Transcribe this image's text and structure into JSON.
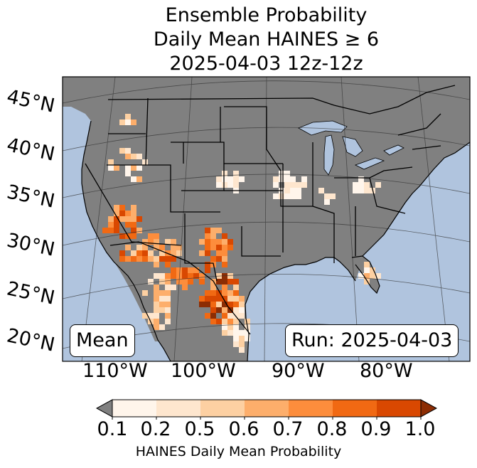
{
  "title": {
    "line1": "Ensemble Probability",
    "line2": "Daily Mean HAINES ≥ 6",
    "line3": "2025-04-03 12z-12z"
  },
  "map": {
    "lat_labels": [
      "45°N",
      "40°N",
      "35°N",
      "30°N",
      "25°N",
      "20°N"
    ],
    "lon_labels": [
      "110°W",
      "100°W",
      "90°W",
      "80°W"
    ],
    "stat_label": "Mean",
    "run_label": "Run: 2025-04-03",
    "colors": {
      "ocean": "#b0c4de",
      "land": "#808080",
      "borders": "#000000"
    }
  },
  "colorbar": {
    "ticks": [
      "0.1",
      "0.2",
      "0.5",
      "0.6",
      "0.7",
      "0.8",
      "0.9",
      "1.0"
    ],
    "colors": [
      "#fff5eb",
      "#fee6ce",
      "#fdd0a2",
      "#fdae6b",
      "#fd8d3c",
      "#f16913",
      "#d94801",
      "#8c2d04"
    ],
    "under_color": "#808080",
    "label": "HAINES Daily Mean Probability"
  }
}
